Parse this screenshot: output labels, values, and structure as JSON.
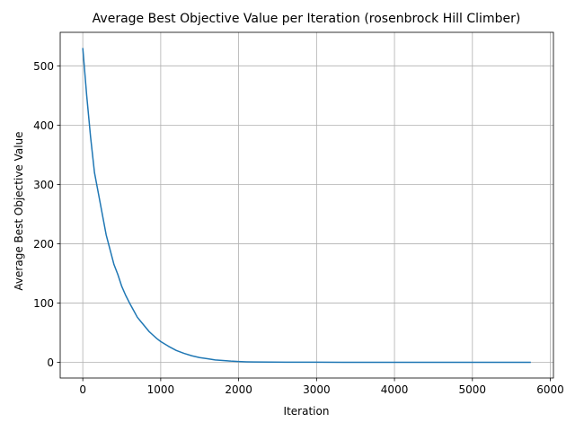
{
  "chart_data": {
    "type": "line",
    "title": "Average Best Objective Value per Iteration (rosenbrock Hill Climber)",
    "xlabel": "Iteration",
    "ylabel": "Average Best Objective Value",
    "xlim": [
      -290,
      6040
    ],
    "ylim": [
      -26.5,
      556.5
    ],
    "xticks": [
      0,
      1000,
      2000,
      3000,
      4000,
      5000,
      6000
    ],
    "yticks": [
      0,
      100,
      200,
      300,
      400,
      500
    ],
    "grid": true,
    "line_color": "#1f77b4",
    "series": [
      {
        "x": [
          0,
          50,
          100,
          150,
          200,
          250,
          300,
          350,
          400,
          450,
          500,
          550,
          600,
          650,
          700,
          750,
          800,
          850,
          900,
          950,
          1000,
          1100,
          1200,
          1300,
          1400,
          1500,
          1600,
          1700,
          1800,
          1900,
          2000,
          2100,
          2200,
          2400,
          2600,
          2800,
          3000,
          3500,
          4000,
          4500,
          5000,
          5500,
          5750
        ],
        "y": [
          530,
          450,
          380,
          320,
          285,
          250,
          215,
          190,
          165,
          148,
          128,
          113,
          100,
          88,
          76,
          68,
          60,
          52,
          46,
          40,
          35,
          27,
          20,
          15,
          11,
          8,
          6,
          4,
          3,
          2,
          1.3,
          0.8,
          0.5,
          0.3,
          0.2,
          0.1,
          0.1,
          0,
          0,
          0,
          0,
          0,
          0
        ]
      }
    ]
  }
}
